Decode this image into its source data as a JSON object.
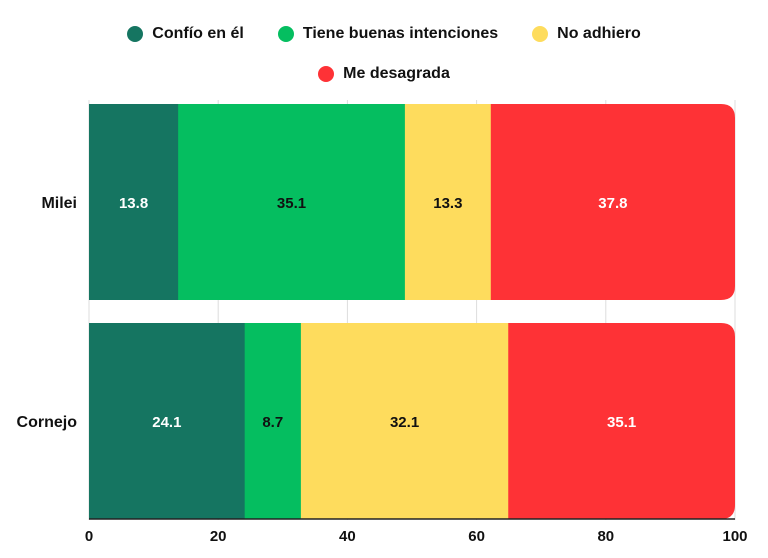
{
  "chart_data": {
    "type": "bar",
    "orientation": "horizontal",
    "stacked": true,
    "categories": [
      "Milei",
      "Cornejo"
    ],
    "series": [
      {
        "name": "Confío en él",
        "color": "#157561",
        "label_color": "#ffffff",
        "values": [
          13.8,
          24.1
        ]
      },
      {
        "name": "Tiene buenas intenciones",
        "color": "#05be60",
        "label_color": "#111111",
        "values": [
          35.1,
          8.7
        ]
      },
      {
        "name": "No adhiero",
        "color": "#fedc5d",
        "label_color": "#111111",
        "values": [
          13.3,
          32.1
        ]
      },
      {
        "name": "Me desagrada",
        "color": "#fe3236",
        "label_color": "#ffffff",
        "values": [
          37.8,
          35.1
        ]
      }
    ],
    "x_ticks": [
      "0",
      "20",
      "40",
      "60",
      "80",
      "100"
    ],
    "xlim": [
      0,
      100
    ],
    "legend_position": "top",
    "grid": true
  }
}
